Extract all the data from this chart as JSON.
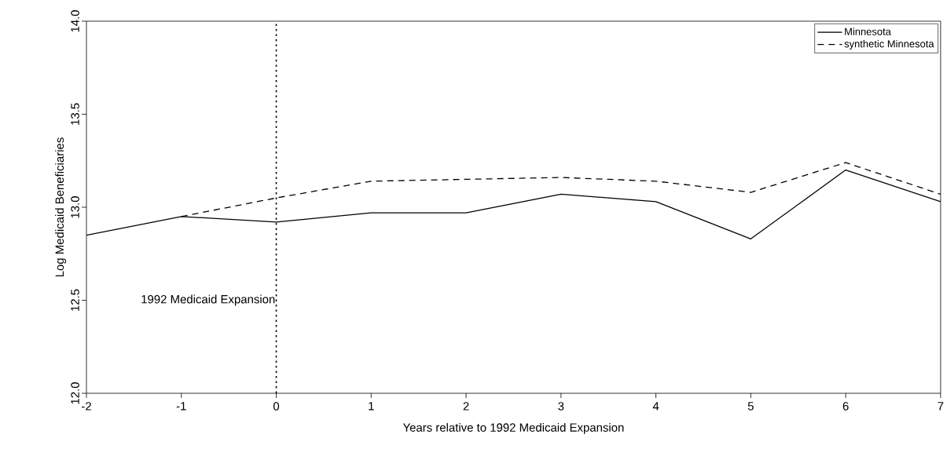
{
  "chart_data": {
    "type": "line",
    "xlabel": "Years relative to 1992 Medicaid Expansion",
    "ylabel": "Log Medicaid Beneficiaries",
    "x": [
      -2,
      -1,
      0,
      1,
      2,
      3,
      4,
      5,
      6,
      7
    ],
    "series": [
      {
        "name": "Minnesota",
        "color": "#000000",
        "line_style": "solid",
        "values": [
          12.85,
          12.95,
          12.92,
          12.97,
          12.97,
          13.07,
          13.03,
          12.83,
          13.2,
          13.03
        ]
      },
      {
        "name": "synthetic Minnesota",
        "color": "#000000",
        "line_style": "dashed",
        "values": [
          null,
          12.95,
          13.05,
          13.14,
          13.15,
          13.16,
          13.14,
          13.08,
          13.24,
          13.07
        ]
      }
    ],
    "xlim": [
      -2,
      7
    ],
    "ylim": [
      12.0,
      14.0
    ],
    "xticks": [
      -2,
      -1,
      0,
      1,
      2,
      3,
      4,
      5,
      6,
      7
    ],
    "yticks": [
      {
        "value": 12.0,
        "label": "12.0"
      },
      {
        "value": 12.5,
        "label": "12.5"
      },
      {
        "value": 13.0,
        "label": "13.0"
      },
      {
        "value": 13.5,
        "label": "13.5"
      },
      {
        "value": 14.0,
        "label": "14.0"
      }
    ],
    "ref_lines": [
      {
        "axis": "x",
        "value": 0,
        "label": "1992 Medicaid Expansion",
        "line_style": "dotted",
        "color": "#000000"
      }
    ],
    "grid": false,
    "legend": "top right"
  }
}
